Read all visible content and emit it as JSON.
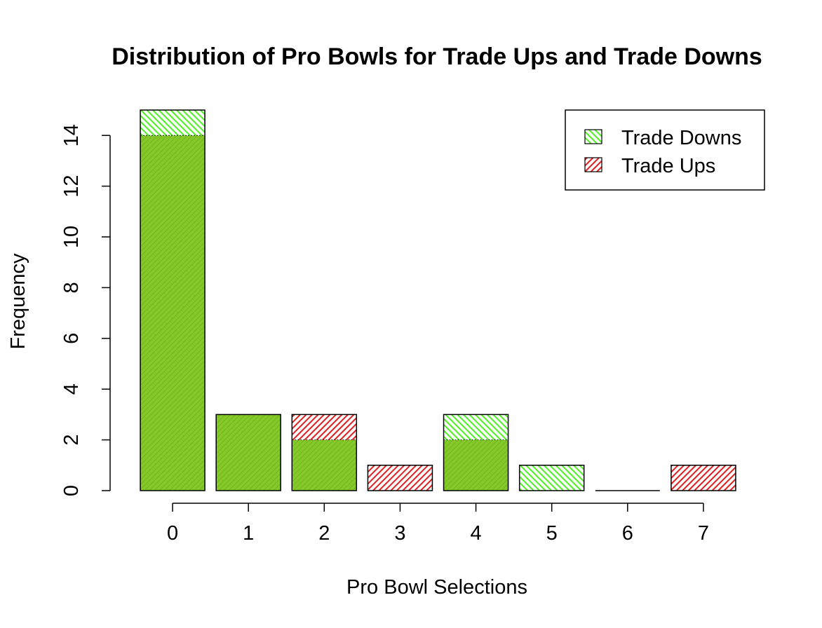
{
  "chart_data": {
    "type": "bar",
    "title": "Distribution of Pro Bowls for Trade Ups and Trade Downs",
    "xlabel": "Pro Bowl Selections",
    "ylabel": "Frequency",
    "categories": [
      "0",
      "1",
      "2",
      "3",
      "4",
      "5",
      "6",
      "7"
    ],
    "series": [
      {
        "name": "Trade Downs",
        "color": "#66ff33",
        "values": [
          15,
          3,
          2,
          0,
          3,
          1,
          0,
          0
        ]
      },
      {
        "name": "Trade Ups",
        "color": "#ff3333",
        "values": [
          14,
          3,
          3,
          1,
          2,
          0,
          0,
          1
        ]
      }
    ],
    "overlap_color": "#80c030",
    "ylim": [
      0,
      15
    ],
    "yticks": [
      0,
      2,
      4,
      6,
      8,
      10,
      12,
      14
    ],
    "grid": false,
    "legend_position": "top-right",
    "style": "overlaid hatched histograms"
  }
}
